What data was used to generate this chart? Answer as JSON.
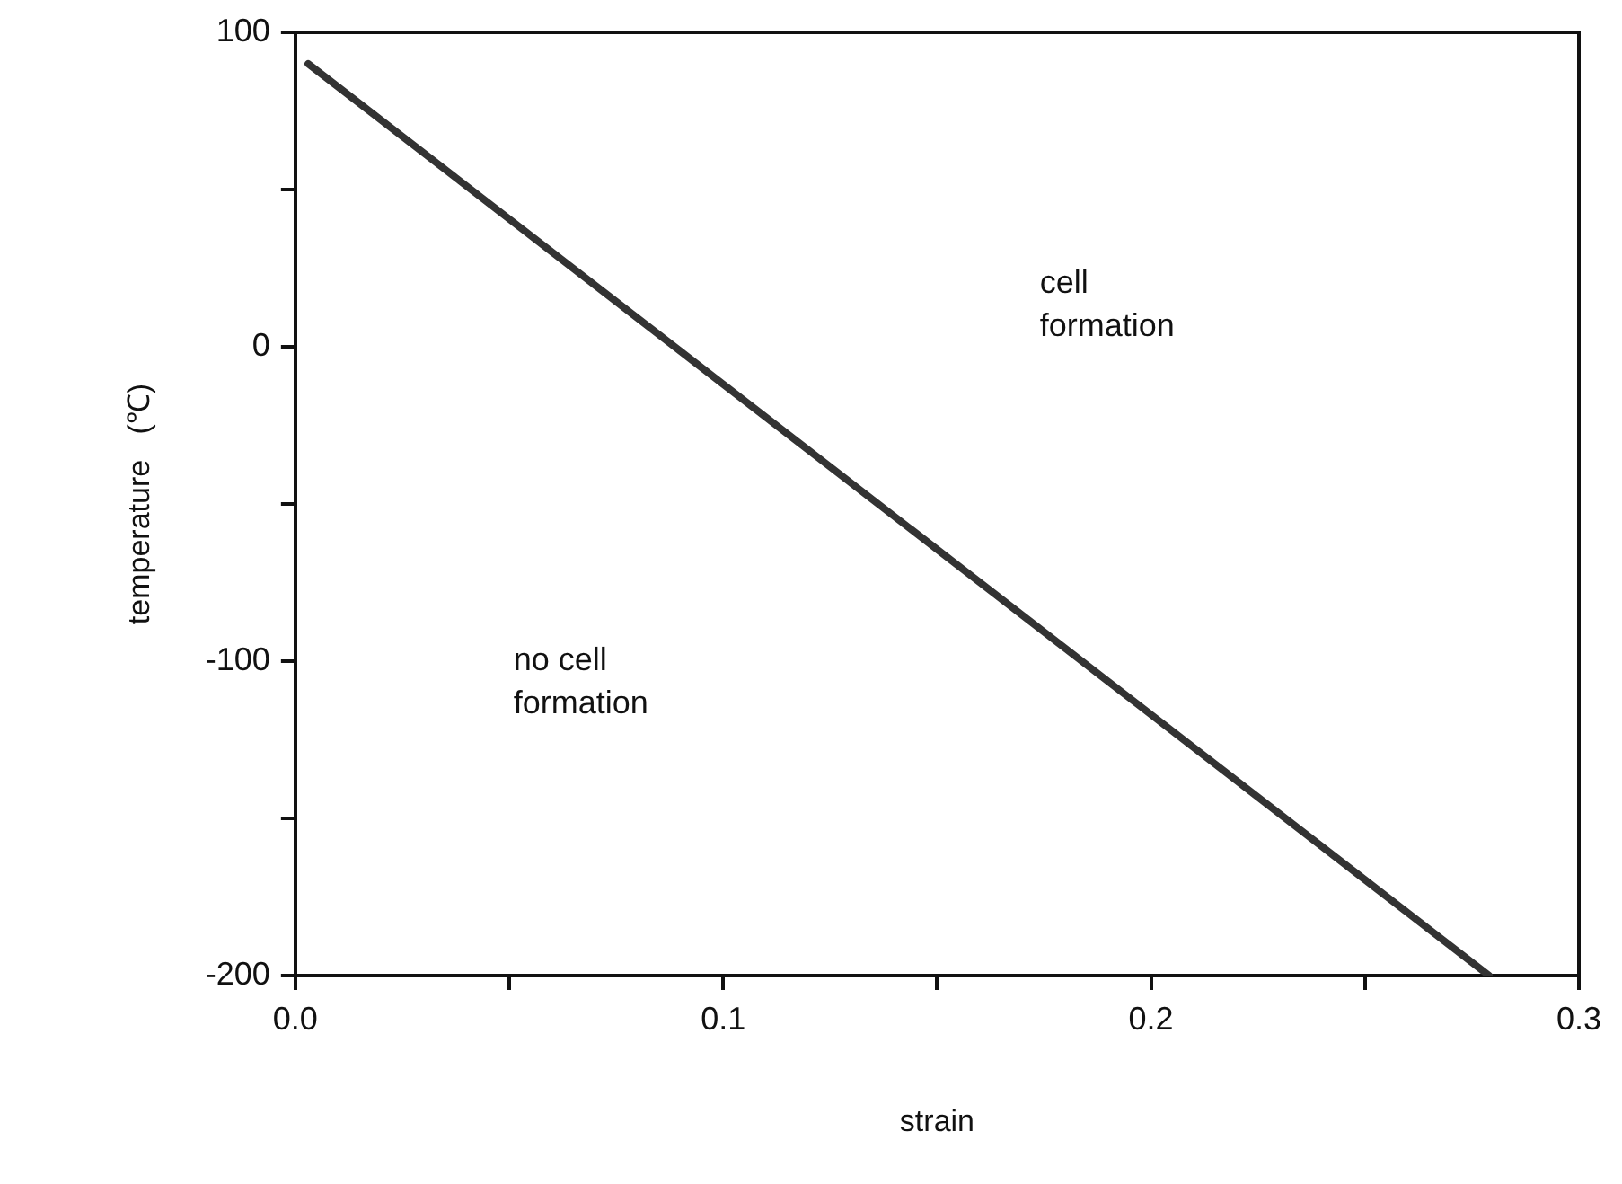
{
  "chart_data": {
    "type": "line",
    "xlabel": "strain",
    "ylabel": "temperature   (℃)",
    "x": [
      0.003,
      0.279
    ],
    "series": [
      {
        "color": "#333333",
        "values": [
          90,
          -200
        ]
      }
    ],
    "xlim": [
      0,
      0.3
    ],
    "xticks": [
      {
        "value": 0,
        "label": "0.0"
      },
      {
        "value": 0.05,
        "label": null
      },
      0.1,
      {
        "value": 0.15,
        "label": null
      },
      0.2,
      {
        "value": 0.25,
        "label": null
      },
      0.3
    ],
    "ylim": [
      -200,
      100
    ],
    "yticks": [
      -200,
      {
        "value": -150,
        "label": null
      },
      -100,
      {
        "value": -50,
        "label": null
      },
      0,
      {
        "value": 50,
        "label": null
      },
      100
    ],
    "annotations": [
      "cell\nformation",
      "no cell\nformation"
    ],
    "grid": false,
    "legend": false,
    "marker": "none",
    "line_style": "solid"
  }
}
